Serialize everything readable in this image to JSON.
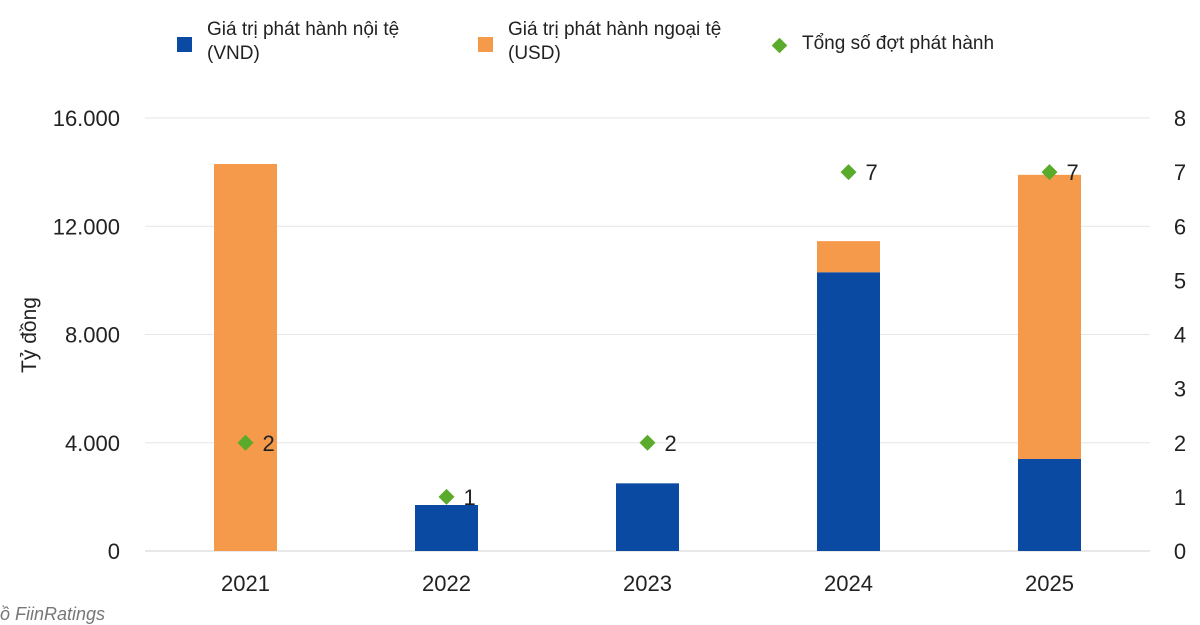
{
  "chart_data": {
    "type": "bar",
    "stacked": true,
    "categories": [
      "2021",
      "2022",
      "2023",
      "2024",
      "2025"
    ],
    "series": [
      {
        "name": "Giá trị phát hành nội tệ (VND)",
        "values": [
          0,
          1700,
          2500,
          10300,
          3400
        ],
        "color": "#0a4aa3",
        "axis": "left"
      },
      {
        "name": "Giá trị phát hành ngoại tệ (USD)",
        "values": [
          14300,
          0,
          0,
          1150,
          10500
        ],
        "color": "#f5994a",
        "axis": "left"
      },
      {
        "name": "Tổng số đợt phát hành",
        "type": "scatter",
        "values": [
          2,
          1,
          2,
          7,
          7
        ],
        "color": "#5aab2c",
        "axis": "right"
      }
    ],
    "ylabel": "Tỷ đồng",
    "ylim": [
      0,
      16000
    ],
    "yticks": [
      "0",
      "4.000",
      "8.000",
      "12.000",
      "16.000"
    ],
    "y2lim": [
      0,
      8
    ],
    "y2ticks": [
      "0",
      "1",
      "2",
      "3",
      "4",
      "5",
      "6",
      "7",
      "8"
    ],
    "grid": true,
    "legend_position": "top"
  },
  "legend": [
    {
      "label": "Giá trị phát hành nội tệ (VND)",
      "color": "#0a4aa3",
      "shape": "square"
    },
    {
      "label": "Giá trị phát hành ngoại tệ (USD)",
      "color": "#f5994a",
      "shape": "square"
    },
    {
      "label": "Tổng số đợt phát hành",
      "color": "#5aab2c",
      "shape": "diamond"
    }
  ],
  "footer_note": "ồ    FiinRatings"
}
